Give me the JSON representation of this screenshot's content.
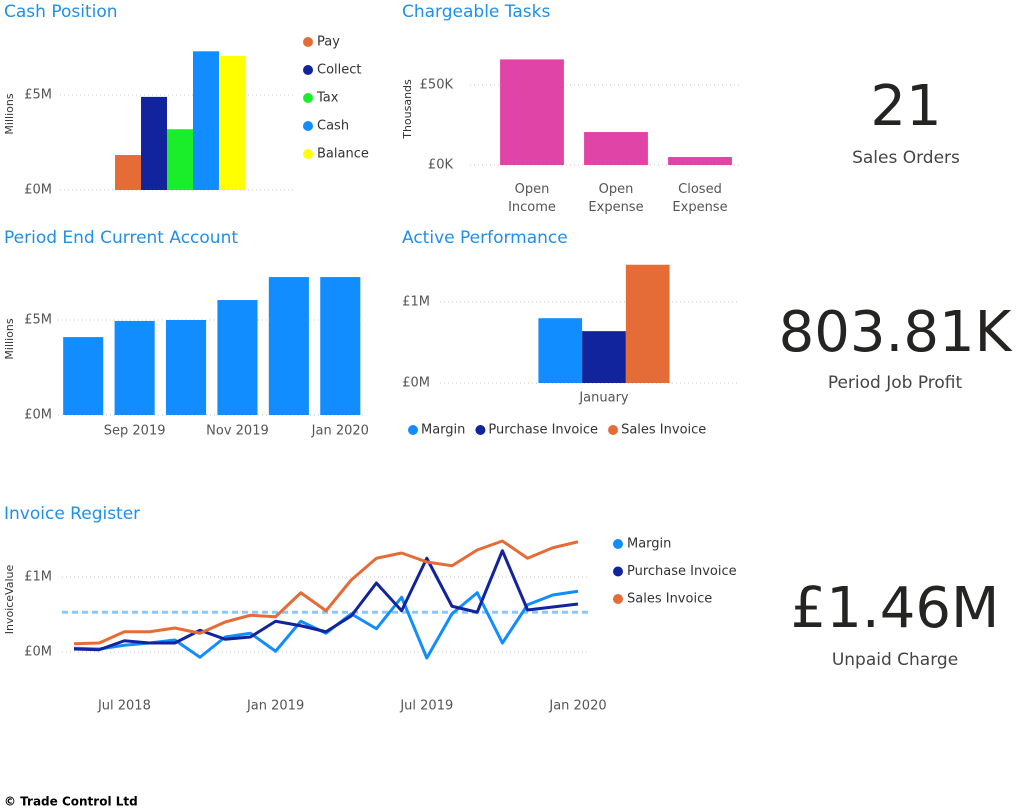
{
  "chart_data": [
    {
      "type": "bar",
      "title": "Cash Position",
      "y_label": "Millions",
      "categories": [
        null
      ],
      "series": [
        {
          "name": "Pay",
          "color": "#e66c37",
          "values": [
            1.84
          ]
        },
        {
          "name": "Collect",
          "color": "#12239e",
          "values": [
            4.9
          ]
        },
        {
          "name": "Tax",
          "color": "#1aee2a",
          "values": [
            3.2
          ]
        },
        {
          "name": "Cash",
          "color": "#118dff",
          "values": [
            7.3
          ]
        },
        {
          "name": "Balance",
          "color": "#ffff00",
          "values": [
            7.05
          ]
        }
      ],
      "ylim": [
        0,
        8
      ],
      "yticks": [
        {
          "value": 0,
          "label": "£0M"
        },
        {
          "value": 5,
          "label": "£5M"
        }
      ],
      "grid": true,
      "legend": "right"
    },
    {
      "type": "bar",
      "title": "Chargeable Tasks",
      "y_label": "Thousands",
      "categories": [
        "Open Income",
        "Open Expense",
        "Closed Expense"
      ],
      "values": [
        66,
        20.6,
        5
      ],
      "color": "#e044a7",
      "ylim": [
        0,
        70
      ],
      "yticks": [
        {
          "value": 0,
          "label": "£0K"
        },
        {
          "value": 50,
          "label": "£50K"
        }
      ],
      "grid": true
    },
    {
      "type": "bar",
      "title": "Period End Current Account",
      "y_label": "Millions",
      "categories": [
        null,
        "Sep 2019",
        null,
        "Nov 2019",
        null,
        "Jan 2020"
      ],
      "values": [
        4.1,
        4.95,
        5.0,
        6.05,
        7.26,
        7.26
      ],
      "color": "#118dff",
      "ylim": [
        0,
        8
      ],
      "yticks": [
        {
          "value": 0,
          "label": "£0M"
        },
        {
          "value": 5,
          "label": "£5M"
        }
      ],
      "grid": true
    },
    {
      "type": "bar",
      "title": "Active Performance",
      "categories": [
        "January"
      ],
      "series": [
        {
          "name": "Margin",
          "color": "#118dff",
          "values": [
            0.8
          ]
        },
        {
          "name": "Purchase Invoice",
          "color": "#12239e",
          "values": [
            0.64
          ]
        },
        {
          "name": "Sales Invoice",
          "color": "#e66c37",
          "values": [
            1.46
          ]
        }
      ],
      "ylim": [
        0,
        1.6
      ],
      "yticks": [
        {
          "value": 0,
          "label": "£0M"
        },
        {
          "value": 1,
          "label": "£1M"
        }
      ],
      "grid": true,
      "legend": "bottom"
    },
    {
      "type": "line",
      "title": "Invoice Register",
      "y_label": "InvoiceValue",
      "categories": [
        null,
        null,
        "Jul 2018",
        null,
        null,
        null,
        null,
        null,
        "Jan 2019",
        null,
        null,
        null,
        null,
        null,
        "Jul 2019",
        null,
        null,
        null,
        null,
        null,
        "Jan 2020"
      ],
      "series": [
        {
          "name": "Margin",
          "color": "#118dff",
          "values": [
            0.05,
            0.04,
            0.09,
            0.12,
            0.16,
            -0.07,
            0.2,
            0.25,
            0.01,
            0.41,
            0.25,
            0.51,
            0.31,
            0.73,
            -0.08,
            0.51,
            0.79,
            0.12,
            0.63,
            0.76,
            0.81
          ]
        },
        {
          "name": "Purchase Invoice",
          "color": "#12239e",
          "values": [
            0.04,
            0.03,
            0.15,
            0.12,
            0.12,
            0.29,
            0.17,
            0.2,
            0.41,
            0.35,
            0.27,
            0.48,
            0.92,
            0.55,
            1.25,
            0.61,
            0.53,
            1.35,
            0.56,
            0.6,
            0.64
          ]
        },
        {
          "name": "Sales Invoice",
          "color": "#e66c37",
          "values": [
            0.11,
            0.12,
            0.27,
            0.27,
            0.32,
            0.25,
            0.4,
            0.49,
            0.47,
            0.79,
            0.55,
            0.96,
            1.25,
            1.32,
            1.2,
            1.15,
            1.36,
            1.48,
            1.25,
            1.39,
            1.47
          ]
        }
      ],
      "reference_value": 0.53,
      "reference_color": "#8cc6ff",
      "ylim": [
        -0.2,
        1.6
      ],
      "yticks": [
        {
          "value": 0,
          "label": "£0M"
        },
        {
          "value": 1,
          "label": "£1M"
        }
      ],
      "grid": true,
      "legend": "right"
    }
  ],
  "cards": [
    {
      "value": "21",
      "label": "Sales Orders"
    },
    {
      "value": "803.81K",
      "label": "Period Job Profit"
    },
    {
      "value": "£1.46M",
      "label": "Unpaid Charge"
    }
  ],
  "footer": "© Trade Control Ltd"
}
